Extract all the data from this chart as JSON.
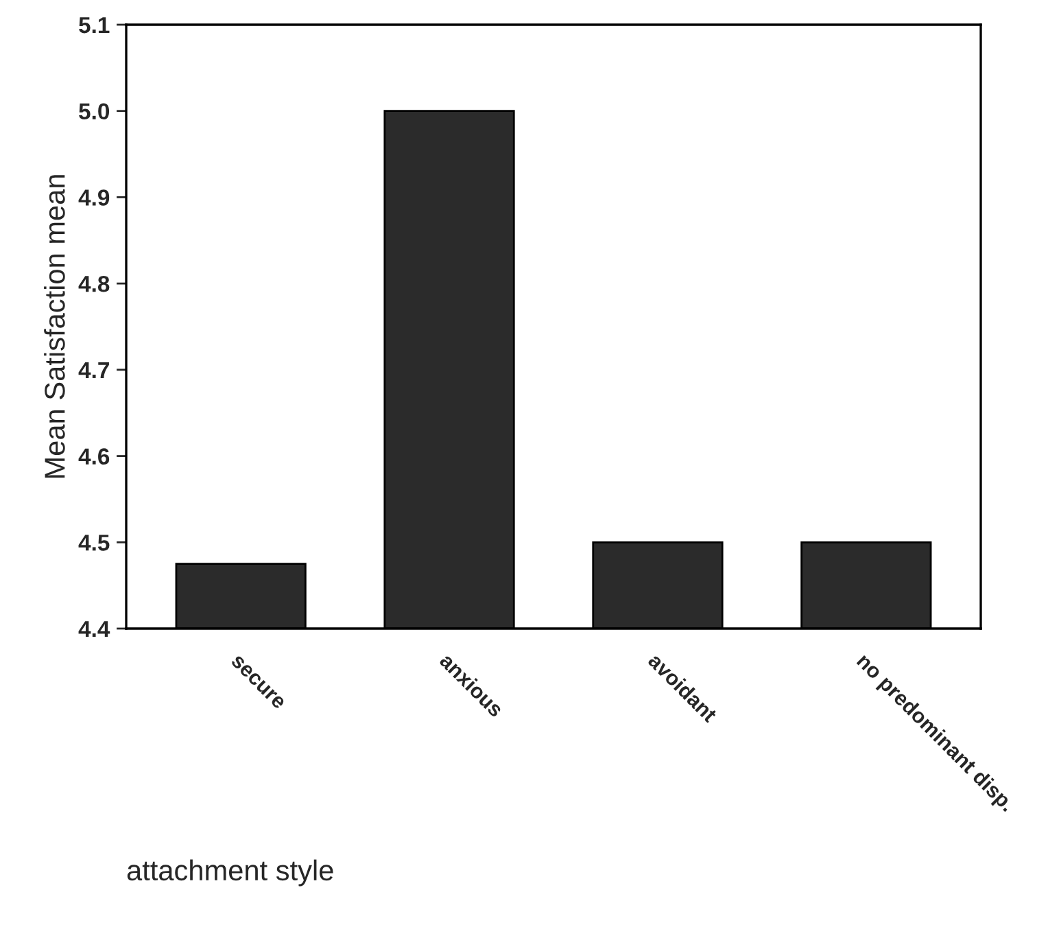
{
  "chart_data": {
    "type": "bar",
    "categories": [
      "secure",
      "anxious",
      "avoidant",
      "no predominant disp."
    ],
    "values": [
      4.475,
      5.0,
      4.5,
      4.5
    ],
    "color": "#2b2b2b",
    "xlabel": "attachment style",
    "ylabel": "Mean Satisfaction mean",
    "ylim": [
      4.4,
      5.1
    ],
    "yticks": [
      {
        "value": 4.4,
        "label": "4.4"
      },
      {
        "value": 4.5,
        "label": "4.5"
      },
      {
        "value": 4.6,
        "label": "4.6"
      },
      {
        "value": 4.7,
        "label": "4.7"
      },
      {
        "value": 4.8,
        "label": "4.8"
      },
      {
        "value": 4.9,
        "label": "4.9"
      },
      {
        "value": 5.0,
        "label": "5.0"
      },
      {
        "value": 5.1,
        "label": "5.1"
      }
    ],
    "grid": false,
    "legend": false
  }
}
